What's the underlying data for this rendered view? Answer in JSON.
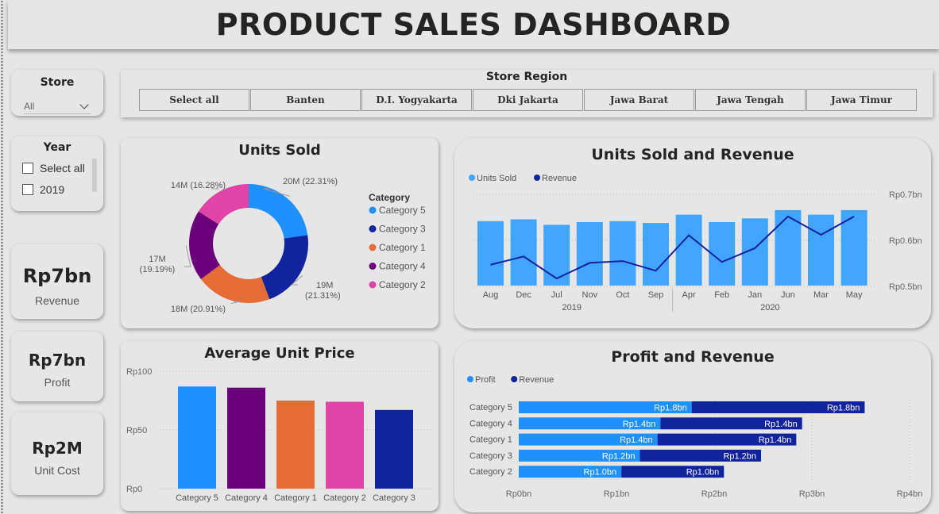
{
  "dashboard_title": "PRODUCT SALES DASHBOARD",
  "store_slicer": {
    "label": "Store",
    "value": "All"
  },
  "region_slicer": {
    "label": "Store Region",
    "options": [
      "Select all",
      "Banten",
      "D.I. Yogyakarta",
      "Dki Jakarta",
      "Jawa Barat",
      "Jawa Tengah",
      "Jawa Timur"
    ]
  },
  "year_slicer": {
    "label": "Year",
    "options": [
      "Select all",
      "2019"
    ]
  },
  "kpis": {
    "revenue": {
      "value": "Rp7bn",
      "label": "Revenue"
    },
    "profit": {
      "value": "Rp7bn",
      "label": "Profit"
    },
    "unit_cost": {
      "value": "Rp2M",
      "label": "Unit Cost"
    }
  },
  "colors": {
    "cat5": "#1e90ff",
    "cat3": "#12239e",
    "cat1": "#e66c37",
    "cat4": "#6b007b",
    "cat2": "#e044a7",
    "light_blue": "#41a4ff",
    "dark_blue": "#12239e"
  },
  "chart_data": [
    {
      "type": "pie",
      "title": "Units Sold",
      "legend_title": "Category",
      "legend_position": "right",
      "slices": [
        {
          "name": "Category 5",
          "value": 20,
          "label": "20M (22.31%)",
          "color": "#1e90ff"
        },
        {
          "name": "Category 3",
          "value": 19,
          "label": "19M (21.31%)",
          "color": "#12239e"
        },
        {
          "name": "Category 1",
          "value": 18,
          "label": "18M (20.91%)",
          "color": "#e66c37"
        },
        {
          "name": "Category 4",
          "value": 17,
          "label": "17M (19.19%)",
          "color": "#6b007b"
        },
        {
          "name": "Category 2",
          "value": 14,
          "label": "14M (16.28%)",
          "color": "#e044a7"
        }
      ],
      "percentages": [
        22.31,
        21.31,
        20.91,
        19.19,
        16.28
      ]
    },
    {
      "type": "bar",
      "title": "Units Sold and Revenue",
      "legend_position": "top-left",
      "categories": [
        "Aug",
        "Dec",
        "Jul",
        "Nov",
        "Oct",
        "Sep",
        "Apr",
        "Feb",
        "Jan",
        "Jun",
        "Mar",
        "May"
      ],
      "year_groups": [
        {
          "label": "2019",
          "count": 6
        },
        {
          "label": "2020",
          "count": 6
        }
      ],
      "series": [
        {
          "name": "Units Sold",
          "type": "bar",
          "values": [
            7.0,
            7.2,
            6.6,
            6.9,
            7.0,
            6.8,
            7.7,
            6.9,
            7.3,
            8.2,
            7.7,
            8.2
          ],
          "color": "#41a4ff"
        },
        {
          "name": "Revenue",
          "type": "line",
          "axis": "right",
          "values": [
            0.547,
            0.565,
            0.517,
            0.551,
            0.555,
            0.534,
            0.611,
            0.553,
            0.583,
            0.652,
            0.612,
            0.652
          ],
          "color": "#12239e"
        }
      ],
      "y_ticks_right": [
        "Rp0.7bn",
        "Rp0.6bn",
        "Rp0.5bn"
      ],
      "y_right_range": [
        0.5,
        0.7
      ]
    },
    {
      "type": "bar",
      "title": "Average Unit Price",
      "categories": [
        "Category 5",
        "Category 4",
        "Category 1",
        "Category 2",
        "Category 3"
      ],
      "values": [
        87,
        86,
        75,
        74,
        67
      ],
      "colors": [
        "#1e90ff",
        "#6b007b",
        "#e66c37",
        "#e044a7",
        "#12239e"
      ],
      "ylim": [
        0,
        100
      ],
      "y_ticks": [
        "Rp100",
        "Rp50",
        "Rp0"
      ]
    },
    {
      "type": "bar",
      "orientation": "horizontal",
      "stacked": true,
      "title": "Profit and Revenue",
      "legend_position": "top-left",
      "categories": [
        "Category 5",
        "Category 4",
        "Category 1",
        "Category 3",
        "Category 2"
      ],
      "series": [
        {
          "name": "Profit",
          "values": [
            1.77,
            1.45,
            1.42,
            1.24,
            1.05
          ],
          "labels": [
            "Rp1.8bn",
            "Rp1.4bn",
            "Rp1.4bn",
            "Rp1.2bn",
            "Rp1.0bn"
          ],
          "color": "#1e90ff"
        },
        {
          "name": "Revenue",
          "values": [
            1.77,
            1.45,
            1.42,
            1.24,
            1.05
          ],
          "labels": [
            "Rp1.8bn",
            "Rp1.4bn",
            "Rp1.4bn",
            "Rp1.2bn",
            "Rp1.0bn"
          ],
          "color": "#12239e"
        }
      ],
      "xlim": [
        0,
        4
      ],
      "x_ticks": [
        "Rp0bn",
        "Rp1bn",
        "Rp2bn",
        "Rp3bn",
        "Rp4bn"
      ]
    }
  ]
}
